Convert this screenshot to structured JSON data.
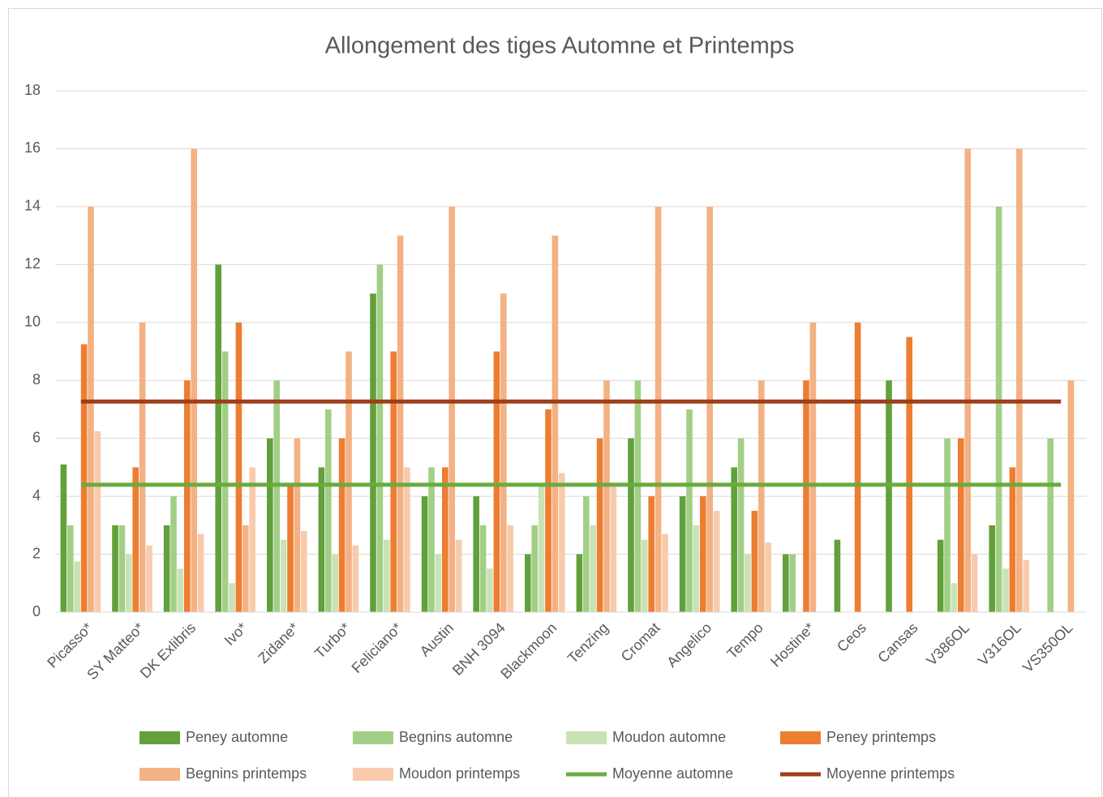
{
  "chart_data": {
    "type": "bar",
    "title": "Allongement des tiges Automne et Printemps",
    "categories": [
      "Picasso*",
      "SY Matteo*",
      "DK Exlibris",
      "Ivo*",
      "Zidane*",
      "Turbo*",
      "Feliciano*",
      "Austin",
      "BNH 3094",
      "Blackmoon",
      "Tenzing",
      "Cromat",
      "Angelico",
      "Tempo",
      "Hostine*",
      "Ceos",
      "Cansas",
      "V386OL",
      "V316OL",
      "VS350OL"
    ],
    "series": [
      {
        "name": "Peney automne",
        "color": "#62a03c",
        "values": [
          5.1,
          3,
          3,
          12,
          6,
          5,
          11,
          4,
          4,
          2,
          2,
          6,
          4,
          5,
          2,
          2.5,
          8,
          2.5,
          3,
          null
        ]
      },
      {
        "name": "Begnins automne",
        "color": "#a2cf86",
        "values": [
          3,
          3,
          4,
          9,
          8,
          7,
          12,
          5,
          3,
          3,
          4,
          8,
          7,
          6,
          2,
          null,
          null,
          6,
          14,
          6
        ]
      },
      {
        "name": "Moudon automne",
        "color": "#c9e3b5",
        "values": [
          1.75,
          2,
          1.5,
          1,
          2.5,
          2,
          2.5,
          2,
          1.5,
          4.4,
          3,
          2.5,
          3,
          2,
          null,
          null,
          null,
          1,
          1.5,
          null
        ]
      },
      {
        "name": "Peney printemps",
        "color": "#ed7d31",
        "values": [
          9.25,
          5,
          8,
          10,
          4.4,
          6,
          9,
          5,
          9,
          7,
          6,
          4,
          4,
          3.5,
          8,
          10,
          9.5,
          6,
          5,
          null
        ]
      },
      {
        "name": "Begnins printemps",
        "color": "#f4b183",
        "values": [
          14,
          10,
          16,
          3,
          6,
          9,
          13,
          14,
          11,
          13,
          8,
          14,
          14,
          8,
          10,
          null,
          null,
          16,
          16,
          8
        ]
      },
      {
        "name": "Moudon printemps",
        "color": "#f8cbad",
        "values": [
          6.25,
          2.3,
          2.7,
          5,
          2.8,
          2.3,
          5,
          2.5,
          3,
          4.8,
          4.4,
          2.7,
          3.5,
          2.4,
          null,
          null,
          null,
          2,
          1.8,
          null
        ]
      },
      {
        "name": "Moyenne automne",
        "color": "#6aab3f",
        "type": "line",
        "values": [
          4.4,
          4.4,
          4.4,
          4.4,
          4.4,
          4.4,
          4.4,
          4.4,
          4.4,
          4.4,
          4.4,
          4.4,
          4.4,
          4.4,
          4.4,
          4.4,
          4.4,
          4.4,
          4.4,
          4.4
        ]
      },
      {
        "name": "Moyenne printemps",
        "color": "#9e3f1b",
        "type": "line",
        "values": [
          7.27,
          7.27,
          7.27,
          7.27,
          7.27,
          7.27,
          7.27,
          7.27,
          7.27,
          7.27,
          7.27,
          7.27,
          7.27,
          7.27,
          7.27,
          7.27,
          7.27,
          7.27,
          7.27,
          7.27
        ]
      }
    ],
    "ylim": [
      0,
      18
    ],
    "yticks": [
      0,
      2,
      4,
      6,
      8,
      10,
      12,
      14,
      16,
      18
    ],
    "grid": true
  }
}
